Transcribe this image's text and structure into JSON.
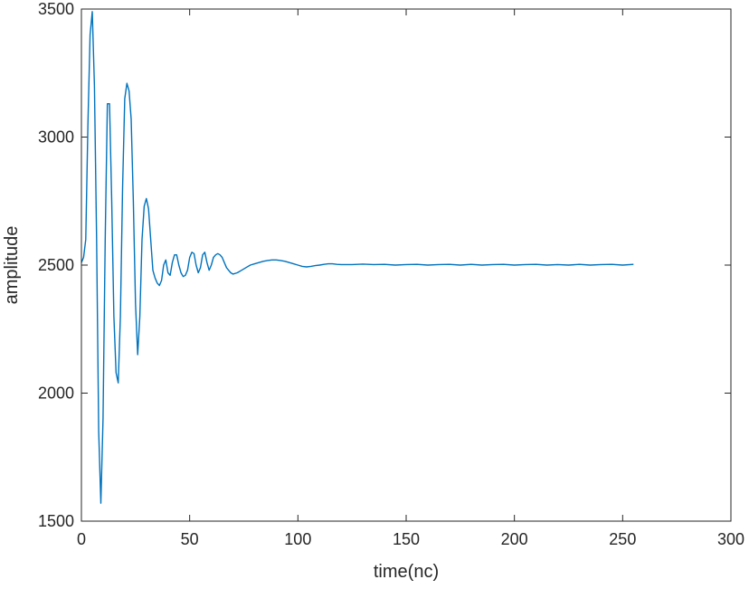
{
  "chart_data": {
    "type": "line",
    "title": "",
    "xlabel": "time(nc)",
    "ylabel": "amplitude",
    "xlim": [
      0,
      300
    ],
    "ylim": [
      1500,
      3500
    ],
    "xticks": [
      0,
      50,
      100,
      150,
      200,
      250,
      300
    ],
    "yticks": [
      1500,
      2000,
      2500,
      3000,
      3500
    ],
    "grid": false,
    "legend": "none",
    "series": [
      {
        "color": "#0072BD",
        "x": [
          0,
          1,
          2,
          3,
          4,
          5,
          6,
          7,
          8,
          9,
          10,
          11,
          12,
          13,
          14,
          15,
          16,
          17,
          18,
          19,
          20,
          21,
          22,
          23,
          24,
          25,
          26,
          27,
          28,
          29,
          30,
          31,
          32,
          33,
          34,
          35,
          36,
          37,
          38,
          39,
          40,
          41,
          42,
          43,
          44,
          45,
          46,
          47,
          48,
          49,
          50,
          51,
          52,
          53,
          54,
          55,
          56,
          57,
          58,
          59,
          60,
          61,
          62,
          63,
          64,
          65,
          66,
          67,
          68,
          69,
          70,
          72,
          74,
          76,
          78,
          80,
          82,
          84,
          86,
          88,
          90,
          92,
          94,
          96,
          98,
          100,
          102,
          104,
          106,
          108,
          110,
          112,
          114,
          116,
          118,
          120,
          125,
          130,
          135,
          140,
          145,
          150,
          155,
          160,
          165,
          170,
          175,
          180,
          185,
          190,
          195,
          200,
          205,
          210,
          215,
          220,
          225,
          230,
          235,
          240,
          245,
          250,
          255
        ],
        "y": [
          2510,
          2530,
          2600,
          3050,
          3400,
          3490,
          3200,
          2600,
          1850,
          1570,
          1900,
          2600,
          3130,
          3130,
          2750,
          2300,
          2080,
          2040,
          2300,
          2800,
          3150,
          3210,
          3180,
          3070,
          2750,
          2350,
          2150,
          2300,
          2600,
          2730,
          2760,
          2720,
          2600,
          2480,
          2450,
          2430,
          2420,
          2440,
          2500,
          2520,
          2470,
          2460,
          2510,
          2540,
          2540,
          2500,
          2470,
          2455,
          2460,
          2480,
          2530,
          2550,
          2545,
          2500,
          2470,
          2490,
          2540,
          2550,
          2510,
          2480,
          2500,
          2530,
          2540,
          2545,
          2540,
          2530,
          2510,
          2490,
          2480,
          2470,
          2465,
          2470,
          2480,
          2490,
          2500,
          2505,
          2510,
          2515,
          2518,
          2520,
          2520,
          2518,
          2515,
          2510,
          2505,
          2500,
          2495,
          2493,
          2495,
          2498,
          2500,
          2503,
          2505,
          2505,
          2503,
          2502,
          2502,
          2504,
          2502,
          2503,
          2500,
          2502,
          2503,
          2500,
          2502,
          2503,
          2500,
          2503,
          2500,
          2502,
          2503,
          2500,
          2502,
          2503,
          2500,
          2502,
          2500,
          2503,
          2500,
          2502,
          2503,
          2500,
          2503
        ]
      }
    ]
  }
}
